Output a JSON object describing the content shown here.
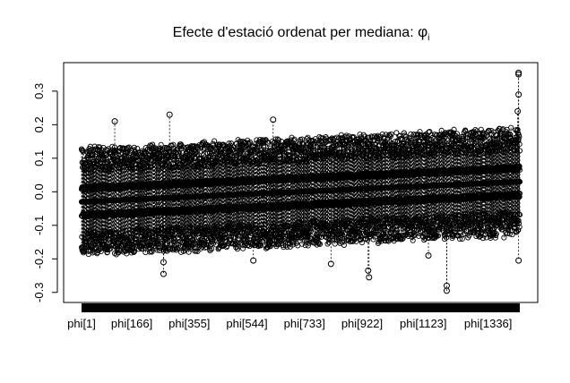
{
  "chart_data": {
    "type": "scatter",
    "subtype": "caterpillar-boxplot",
    "title": {
      "prefix": "Efecte d'estació ordenat per mediana:  ",
      "symbol": "φ",
      "subscript": "i"
    },
    "xlabel": "",
    "ylabel": "",
    "n_items": 1440,
    "x_tick_labels": [
      "phi[1]",
      "phi[166]",
      "phi[355]",
      "phi[544]",
      "phi[733]",
      "phi[922]",
      "phi[1123]",
      "phi[1336]"
    ],
    "x_tick_index": [
      1,
      166,
      355,
      544,
      733,
      922,
      1123,
      1336
    ],
    "y_ticks": [
      -0.3,
      -0.2,
      -0.1,
      0.0,
      0.1,
      0.2,
      0.3
    ],
    "y_tick_labels": [
      "-0.3",
      "-0.2",
      "-0.1",
      "0.0",
      "0.1",
      "0.2",
      "0.3"
    ],
    "ylim": [
      -0.33,
      0.385
    ],
    "median_range": [
      -0.03,
      0.03
    ],
    "typical_q1_offset": -0.04,
    "typical_q3_offset": 0.04,
    "typical_whisker_extent": 0.1,
    "notable_outliers": [
      {
        "item": 1436,
        "value": 0.355
      },
      {
        "item": 1436,
        "value": 0.35
      },
      {
        "item": 1436,
        "value": 0.29
      },
      {
        "item": 1433,
        "value": 0.24
      },
      {
        "item": 1436,
        "value": -0.205
      },
      {
        "item": 1200,
        "value": -0.28
      },
      {
        "item": 1200,
        "value": -0.295
      },
      {
        "item": 945,
        "value": -0.255
      },
      {
        "item": 942,
        "value": -0.235
      },
      {
        "item": 820,
        "value": -0.215
      },
      {
        "item": 270,
        "value": -0.245
      },
      {
        "item": 270,
        "value": -0.21
      },
      {
        "item": 565,
        "value": -0.205
      },
      {
        "item": 1140,
        "value": -0.19
      },
      {
        "item": 110,
        "value": 0.21
      },
      {
        "item": 290,
        "value": 0.23
      },
      {
        "item": 630,
        "value": 0.215
      }
    ],
    "grid": false,
    "legend": "none",
    "point_style": "open-circle",
    "color": "#000000"
  }
}
